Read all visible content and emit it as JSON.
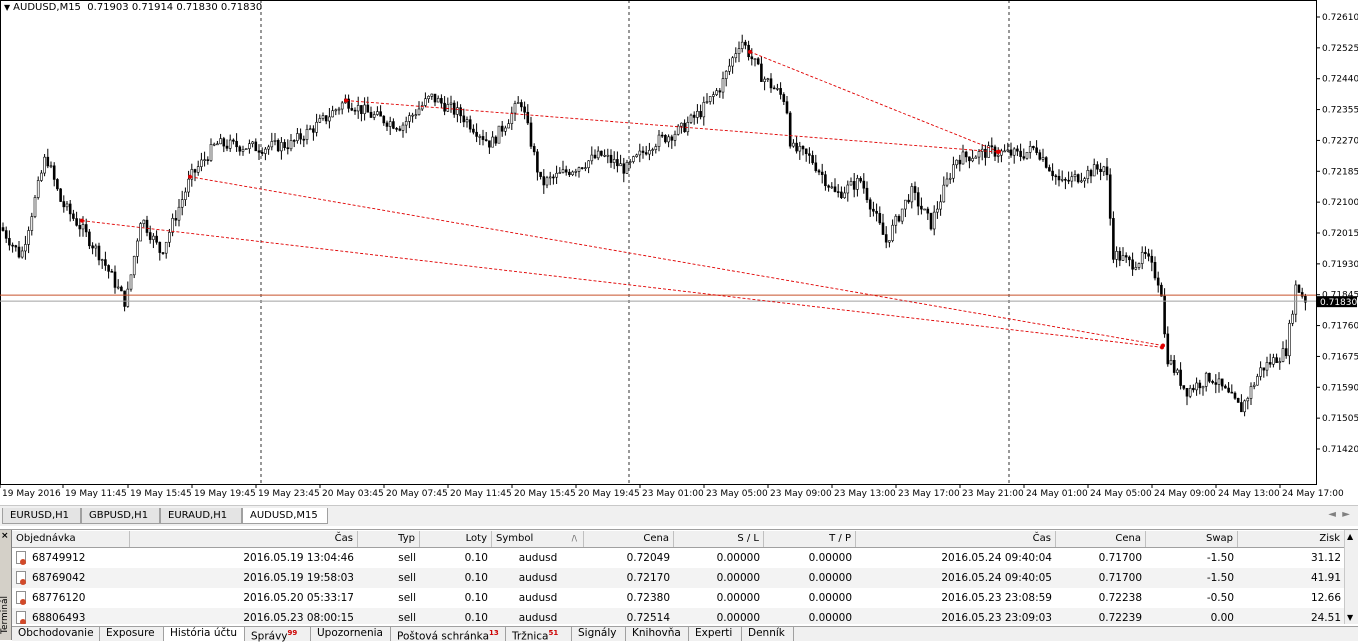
{
  "chart": {
    "title": "AUDUSD,M15",
    "ohlc": "0.71903 0.71914 0.71830 0.71830",
    "current_price": "0.71830",
    "price_labels": [
      "0.72610",
      "0.72525",
      "0.72440",
      "0.72355",
      "0.72270",
      "0.72185",
      "0.72100",
      "0.72015",
      "0.71930",
      "0.71845",
      "0.71760",
      "0.71675",
      "0.71590",
      "0.71505",
      "0.71420"
    ],
    "time_labels": [
      "19 May 2016",
      "19 May 11:45",
      "19 May 15:45",
      "19 May 19:45",
      "19 May 23:45",
      "20 May 03:45",
      "20 May 07:45",
      "20 May 11:45",
      "20 May 15:45",
      "20 May 19:45",
      "23 May 01:00",
      "23 May 05:00",
      "23 May 09:00",
      "23 May 13:00",
      "23 May 17:00",
      "23 May 21:00",
      "24 May 01:00",
      "24 May 05:00",
      "24 May 09:00",
      "24 May 13:00",
      "24 May 17:00"
    ],
    "colors": {
      "bid_line": "#c8502a",
      "trade_line": "#e00000",
      "candle": "#000000",
      "period_sep": "#000000"
    }
  },
  "chart_tabs": [
    "EURUSD,H1",
    "GBPUSD,H1",
    "EURAUD,H1",
    "AUDUSD,M15"
  ],
  "active_chart_tab": "AUDUSD,M15",
  "terminal": {
    "side_label": "Terminál",
    "close_glyph": "×",
    "columns": [
      "Objednávka",
      "Čas",
      "Typ",
      "Loty",
      "Symbol",
      "Cena",
      "S / L",
      "T / P",
      "Čas",
      "Cena",
      "Swap",
      "Zisk"
    ],
    "sort_indicator": "/\\",
    "rows": [
      [
        "68749912",
        "2016.05.19 13:04:46",
        "sell",
        "0.10",
        "audusd",
        "0.72049",
        "0.00000",
        "0.00000",
        "2016.05.24 09:40:04",
        "0.71700",
        "-1.50",
        "31.12"
      ],
      [
        "68769042",
        "2016.05.19 19:58:03",
        "sell",
        "0.10",
        "audusd",
        "0.72170",
        "0.00000",
        "0.00000",
        "2016.05.24 09:40:05",
        "0.71700",
        "-1.50",
        "41.91"
      ],
      [
        "68776120",
        "2016.05.20 05:33:17",
        "sell",
        "0.10",
        "audusd",
        "0.72380",
        "0.00000",
        "0.00000",
        "2016.05.23 23:08:59",
        "0.72238",
        "-0.50",
        "12.66"
      ],
      [
        "68806493",
        "2016.05.23 08:00:15",
        "sell",
        "0.10",
        "audusd",
        "0.72514",
        "0.00000",
        "0.00000",
        "2016.05.23 23:09:03",
        "0.72239",
        "0.00",
        "24.51"
      ]
    ],
    "tabs": [
      {
        "label": "Obchodovanie",
        "badge": ""
      },
      {
        "label": "Exposure",
        "badge": ""
      },
      {
        "label": "História účtu",
        "badge": ""
      },
      {
        "label": "Správy",
        "badge": "99"
      },
      {
        "label": "Upozornenia",
        "badge": ""
      },
      {
        "label": "Poštová schránka",
        "badge": "13"
      },
      {
        "label": "Tržnica",
        "badge": "51"
      },
      {
        "label": "Signály",
        "badge": ""
      },
      {
        "label": "Knihovňa",
        "badge": ""
      },
      {
        "label": "Experti",
        "badge": ""
      },
      {
        "label": "Denník",
        "badge": ""
      }
    ],
    "active_tab": "História účtu"
  }
}
